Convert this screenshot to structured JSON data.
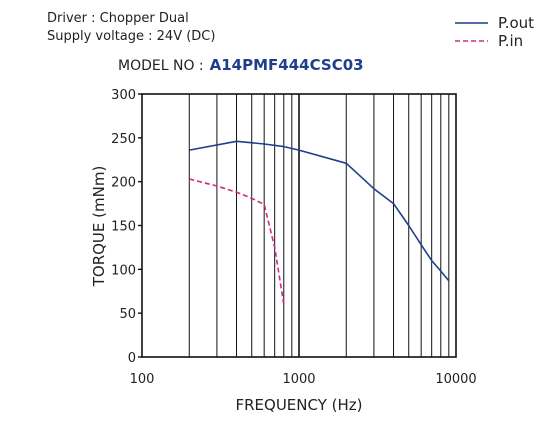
{
  "header": {
    "driver": "Driver : Chopper Dual",
    "supply": "Supply voltage : 24V (DC)",
    "model_prefix": "MODEL NO :",
    "model_number": "A14PMF444CSC03"
  },
  "colors": {
    "pout": "#1f3f8a",
    "pin": "#d0287f",
    "axis": "#111111"
  },
  "chart_data": {
    "type": "line",
    "xlabel": "FREQUENCY (Hz)",
    "ylabel": "TORQUE (mNm)",
    "xscale": "log",
    "xlim": [
      100,
      10000
    ],
    "ylim": [
      0,
      300
    ],
    "xticks": [
      100,
      1000,
      10000
    ],
    "xtick_labels": [
      "100",
      "1000",
      "10000"
    ],
    "yticks": [
      0,
      50,
      100,
      150,
      200,
      250,
      300
    ],
    "ytick_labels": [
      "0",
      "50",
      "100",
      "150",
      "200",
      "250",
      "300"
    ],
    "grid": "vertical log minor lines",
    "legend_position": "top-right",
    "series": [
      {
        "name": "P.out",
        "style": "solid",
        "x": [
          200,
          400,
          600,
          800,
          1000,
          2000,
          3000,
          4000,
          5000,
          6000,
          7000,
          8000,
          9000
        ],
        "y": [
          236,
          246,
          243,
          240,
          236,
          221,
          192,
          175,
          150,
          128,
          110,
          98,
          87
        ]
      },
      {
        "name": "P.in",
        "style": "dashed",
        "x": [
          200,
          300,
          400,
          500,
          600,
          700,
          800
        ],
        "y": [
          203,
          195,
          188,
          181,
          174,
          125,
          60
        ]
      }
    ]
  }
}
